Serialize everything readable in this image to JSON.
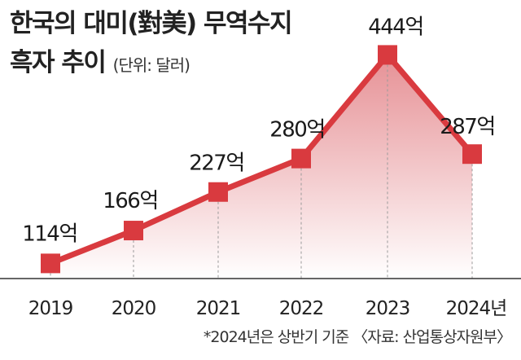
{
  "title_line1": "한국의 대미(對美) 무역수지",
  "title_line2": "흑자 추이",
  "unit_label": "(단위: 달러)",
  "source_note": "*2024년은 상반기 기준 〈자료: 산업통상자원부〉",
  "colors": {
    "line": "#d93a3f",
    "marker": "#d93a3f",
    "fill_top": "#e58b90",
    "baseline": "#333333",
    "text": "#222222"
  },
  "chart_data": {
    "type": "area",
    "categories": [
      "2019",
      "2020",
      "2021",
      "2022",
      "2023",
      "2024년"
    ],
    "values": [
      114,
      166,
      227,
      280,
      444,
      287
    ],
    "data_labels": [
      "114억",
      "166억",
      "227억",
      "280억",
      "444억",
      "287억"
    ],
    "ylim": [
      90,
      460
    ],
    "grid": false,
    "legend": "none"
  }
}
